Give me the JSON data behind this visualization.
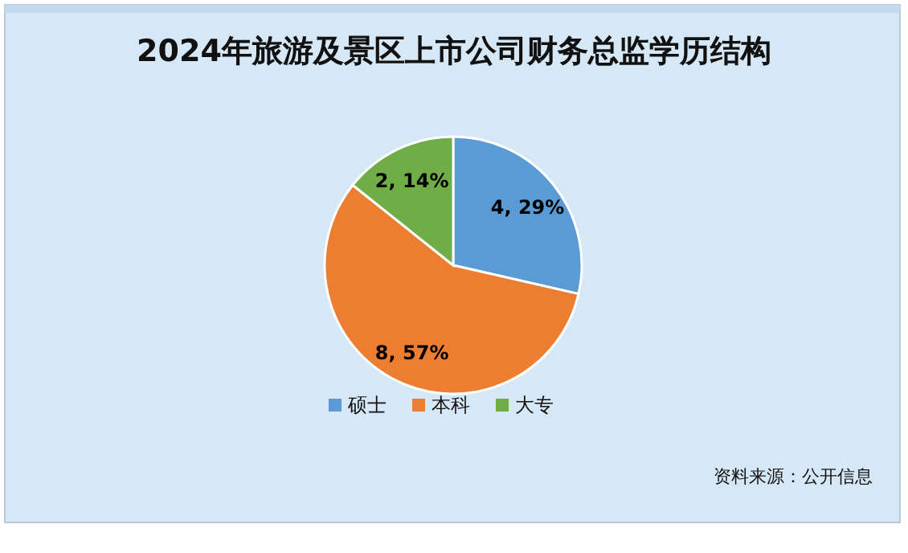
{
  "chart_data": {
    "type": "pie",
    "title": "2024年旅游及景区上市公司财务总监学历结构",
    "categories": [
      "硕士",
      "本科",
      "大专"
    ],
    "values": [
      4,
      8,
      2
    ],
    "colors": [
      "#5b9bd5",
      "#ed7d31",
      "#70ad47"
    ],
    "value_labels": [
      "4, 29%",
      "8, 57%",
      "2, 14%"
    ],
    "legend": "bottom",
    "annotations": [
      "资料来源：公开信息"
    ]
  }
}
